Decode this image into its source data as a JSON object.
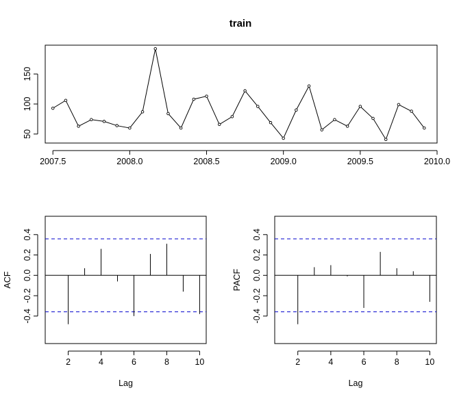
{
  "chart_data": [
    {
      "type": "line",
      "title": "train",
      "xlabel": "",
      "ylabel": "",
      "xlim": [
        2007.45,
        2010.0
      ],
      "ylim": [
        35,
        198
      ],
      "xticks": [
        2007.5,
        2008.0,
        2008.5,
        2009.0,
        2009.5,
        2010.0
      ],
      "xtick_labels": [
        "2007.5",
        "2008.0",
        "2008.5",
        "2009.0",
        "2009.5",
        "2010.0"
      ],
      "yticks": [
        50,
        100,
        150
      ],
      "ytick_labels": [
        "50",
        "100",
        "150"
      ],
      "markers": "open-circle",
      "series": [
        {
          "x": [
            2007.5,
            2007.5833,
            2007.6667,
            2007.75,
            2007.8333,
            2007.9167,
            2008.0,
            2008.0833,
            2008.1667,
            2008.25,
            2008.3333,
            2008.4167,
            2008.5,
            2008.5833,
            2008.6667,
            2008.75,
            2008.8333,
            2008.9167,
            2009.0,
            2009.0833,
            2009.1667,
            2009.25,
            2009.3333,
            2009.4167,
            2009.5,
            2009.5833,
            2009.6667,
            2009.75,
            2009.8333,
            2009.9167
          ],
          "y": [
            93,
            106,
            63,
            74,
            71,
            64,
            60,
            87,
            192,
            84,
            60,
            108,
            113,
            66,
            79,
            122,
            96,
            69,
            43,
            90,
            130,
            57,
            74,
            63,
            96,
            76,
            41,
            99,
            88,
            60
          ]
        }
      ]
    },
    {
      "type": "bar",
      "xlabel": "Lag",
      "ylabel": "ACF",
      "xlim": [
        0.6,
        10.4
      ],
      "ylim": [
        -0.67,
        0.58
      ],
      "xticks": [
        2,
        4,
        6,
        8,
        10
      ],
      "xtick_labels": [
        "2",
        "4",
        "6",
        "8",
        "10"
      ],
      "yticks": [
        -0.4,
        -0.2,
        0.0,
        0.2,
        0.4
      ],
      "ytick_labels": [
        "-0.4",
        "-0.2",
        "0.0",
        "0.2",
        "0.4"
      ],
      "confidence_band": 0.358,
      "lags": [
        1,
        2,
        3,
        4,
        5,
        6,
        7,
        8,
        9,
        10
      ],
      "values": [
        0.0,
        -0.48,
        0.07,
        0.26,
        -0.06,
        -0.4,
        0.21,
        0.31,
        -0.16,
        -0.38
      ]
    },
    {
      "type": "bar",
      "xlabel": "Lag",
      "ylabel": "PACF",
      "xlim": [
        0.6,
        10.4
      ],
      "ylim": [
        -0.67,
        0.58
      ],
      "xticks": [
        2,
        4,
        6,
        8,
        10
      ],
      "xtick_labels": [
        "2",
        "4",
        "6",
        "8",
        "10"
      ],
      "yticks": [
        -0.4,
        -0.2,
        0.0,
        0.2,
        0.4
      ],
      "ytick_labels": [
        "-0.4",
        "-0.2",
        "0.0",
        "0.2",
        "0.4"
      ],
      "confidence_band": 0.358,
      "lags": [
        1,
        2,
        3,
        4,
        5,
        6,
        7,
        8,
        9,
        10
      ],
      "values": [
        0.0,
        -0.48,
        0.08,
        0.1,
        -0.01,
        -0.32,
        0.23,
        0.07,
        0.04,
        -0.26
      ]
    }
  ],
  "colors": {
    "line": "#000000",
    "axis": "#000000",
    "confidence": "#0000cc",
    "background": "#ffffff"
  }
}
